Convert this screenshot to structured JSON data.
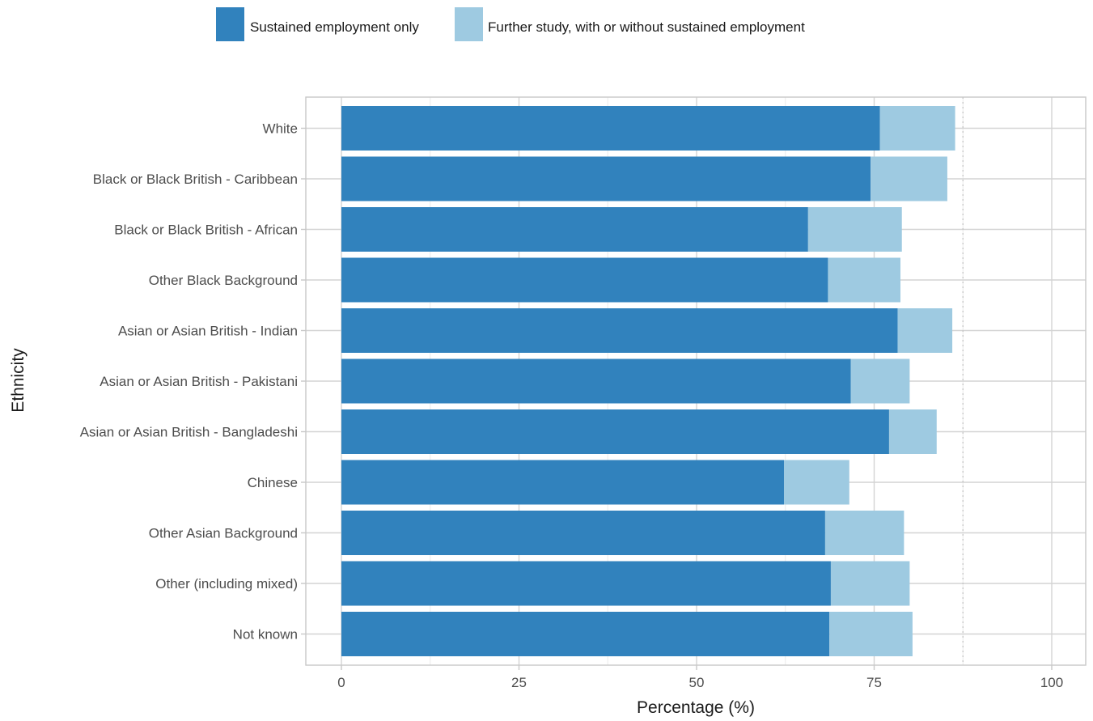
{
  "colors": {
    "sustained": "#3182bd",
    "further": "#9ecae1",
    "grid_major": "#d4d4d4",
    "grid_minor": "#ebebeb",
    "panel_border": "#c8c8c8",
    "reference_line": "#c8c8c8"
  },
  "chart_data": {
    "type": "bar",
    "orientation": "horizontal",
    "stacked": true,
    "title": "",
    "xlabel": "Percentage (%)",
    "ylabel": "Ethnicity",
    "xlim": [
      0,
      100
    ],
    "x_ticks": [
      0,
      25,
      50,
      75,
      100
    ],
    "grid": true,
    "legend_position": "top",
    "reference_line": 87.5,
    "categories": [
      "White",
      "Black or Black British - Caribbean",
      "Black or Black British - African",
      "Other Black Background",
      "Asian or Asian British - Indian",
      "Asian or Asian British - Pakistani",
      "Asian or Asian British - Bangladeshi",
      "Chinese",
      "Other Asian Background",
      "Other (including mixed)",
      "Not known"
    ],
    "series": [
      {
        "name": "Sustained employment only",
        "values": [
          75.8,
          74.5,
          65.7,
          68.5,
          78.3,
          71.7,
          77.1,
          62.3,
          68.1,
          68.9,
          68.7
        ]
      },
      {
        "name": "Further study, with or without sustained employment",
        "values": [
          10.6,
          10.8,
          13.2,
          10.2,
          7.7,
          8.3,
          6.7,
          9.2,
          11.1,
          11.1,
          11.7
        ]
      }
    ]
  }
}
